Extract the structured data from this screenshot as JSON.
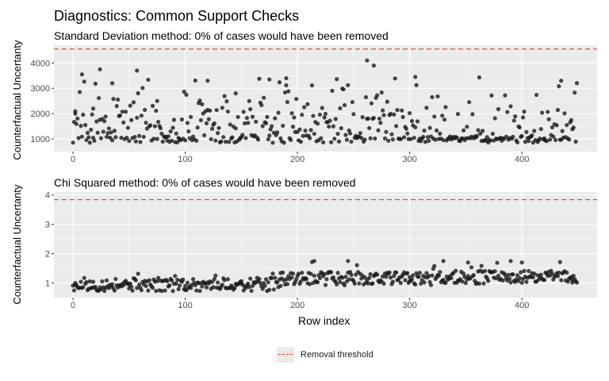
{
  "header": {
    "title": "Diagnostics: Common Support Checks"
  },
  "xlabel": "Row index",
  "legend": {
    "label": "Removal threshold",
    "color": "#d04a3f",
    "position": "bottom"
  },
  "colors": {
    "panel_bg": "#ebebeb",
    "grid": "#ffffff",
    "points": "#1a1a1a",
    "threshold": "#d04a3f"
  },
  "chart_data": [
    {
      "type": "scatter",
      "title": "Standard Deviation method: 0% of cases would have been removed",
      "xlabel": "Row index",
      "ylabel": "Counterfactual Uncertanty",
      "xlim": [
        -17,
        467
      ],
      "ylim": [
        500,
        4700
      ],
      "xticks": [
        0,
        100,
        200,
        300,
        400
      ],
      "yticks": [
        1000,
        2000,
        3000,
        4000
      ],
      "threshold": 4550,
      "grid": true,
      "n": 450,
      "sample_points": [
        [
          2,
          2000
        ],
        [
          8,
          3550
        ],
        [
          18,
          2200
        ],
        [
          24,
          3750
        ],
        [
          35,
          3200
        ],
        [
          57,
          3700
        ],
        [
          75,
          2500
        ],
        [
          120,
          3300
        ],
        [
          145,
          2800
        ],
        [
          175,
          3350
        ],
        [
          190,
          3400
        ],
        [
          262,
          4100
        ],
        [
          268,
          3900
        ],
        [
          305,
          3450
        ],
        [
          435,
          3300
        ]
      ]
    },
    {
      "type": "scatter",
      "title": "Chi Squared method: 0% of cases would have been removed",
      "xlabel": "Row index",
      "ylabel": "Counterfactual Uncertanty",
      "xlim": [
        -17,
        467
      ],
      "ylim": [
        0.5,
        4.1
      ],
      "xticks": [
        0,
        100,
        200,
        300,
        400
      ],
      "yticks": [
        1,
        2,
        3,
        4
      ],
      "threshold": 3.84,
      "grid": true,
      "n": 450,
      "sample_points": [
        [
          2,
          1.0
        ],
        [
          50,
          0.95
        ],
        [
          100,
          0.9
        ],
        [
          150,
          1.0
        ],
        [
          185,
          0.9
        ],
        [
          215,
          1.75
        ],
        [
          245,
          1.75
        ],
        [
          300,
          1.2
        ],
        [
          330,
          1.75
        ],
        [
          352,
          1.7
        ],
        [
          390,
          1.75
        ],
        [
          400,
          1.7
        ],
        [
          445,
          1.1
        ]
      ]
    }
  ]
}
